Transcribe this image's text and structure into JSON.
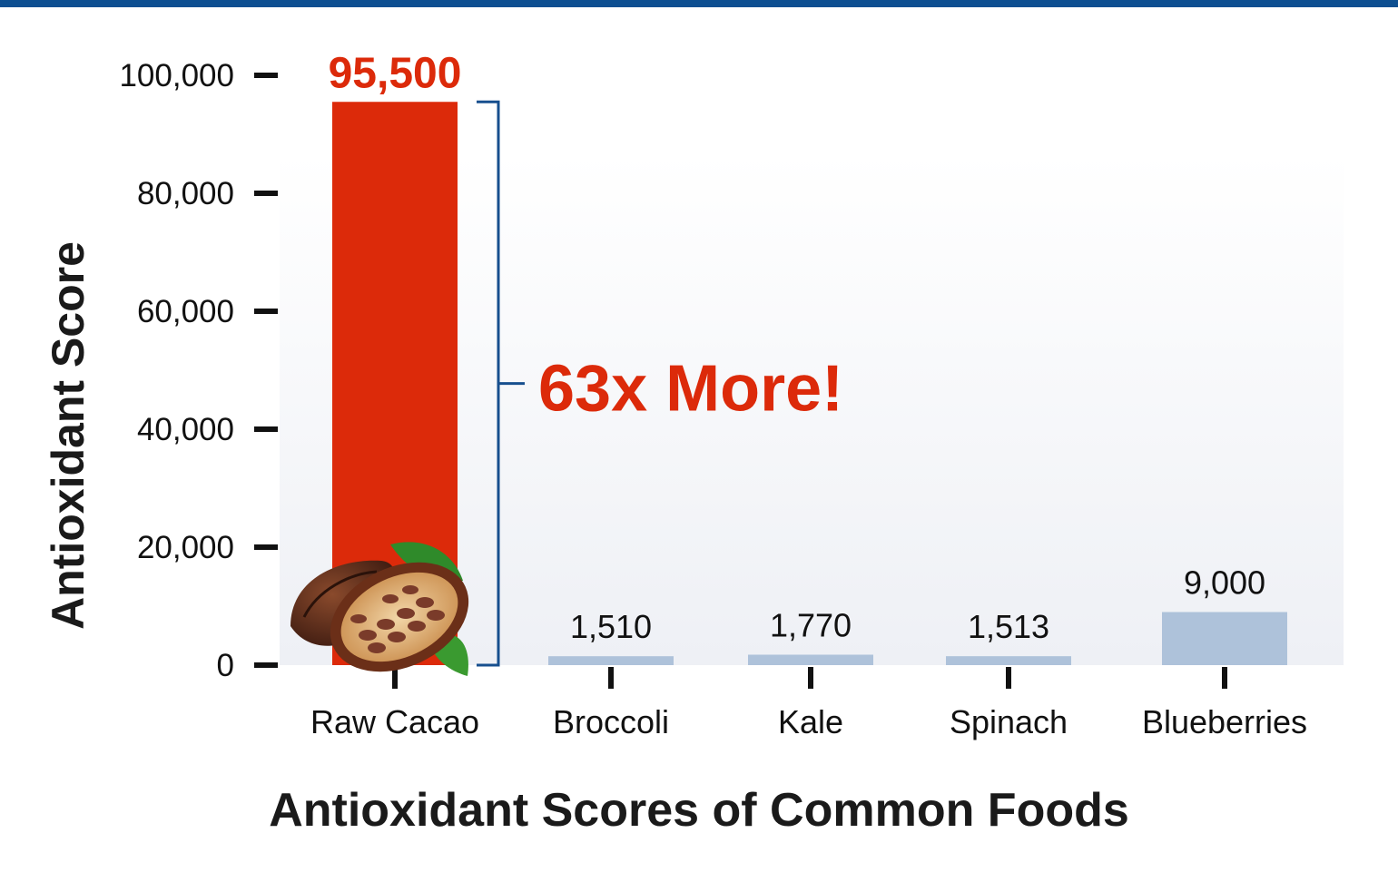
{
  "colors": {
    "top_stripe": "#0d4f91",
    "highlight_bar": "#dc2a0a",
    "other_bar": "#aec2da",
    "bracket": "#174f8e",
    "callout_text": "#dc2a0a",
    "axis_ticks": "#111111",
    "plot_bg_top": "#ffffff",
    "plot_bg_bottom": "#eef0f5"
  },
  "decor": {
    "cacao_image_icon": "cacao-pod-icon"
  },
  "chart_data": {
    "type": "bar",
    "title": "Antioxidant Scores of Common Foods",
    "xlabel": "",
    "ylabel": "Antioxidant Score",
    "ylim": [
      0,
      100000
    ],
    "yticks": [
      0,
      20000,
      40000,
      60000,
      80000,
      100000
    ],
    "ytick_labels": [
      "0",
      "20,000",
      "40,000",
      "60,000",
      "80,000",
      "100,000"
    ],
    "grid": false,
    "legend": "none",
    "categories": [
      "Raw Cacao",
      "Broccoli",
      "Kale",
      "Spinach",
      "Blueberries"
    ],
    "values": [
      95500,
      1510,
      1770,
      1513,
      9000
    ],
    "value_labels": [
      "95,500",
      "1,510",
      "1,770",
      "1,513",
      "9,000"
    ],
    "highlight_index": 0,
    "annotation": "63x More!"
  }
}
